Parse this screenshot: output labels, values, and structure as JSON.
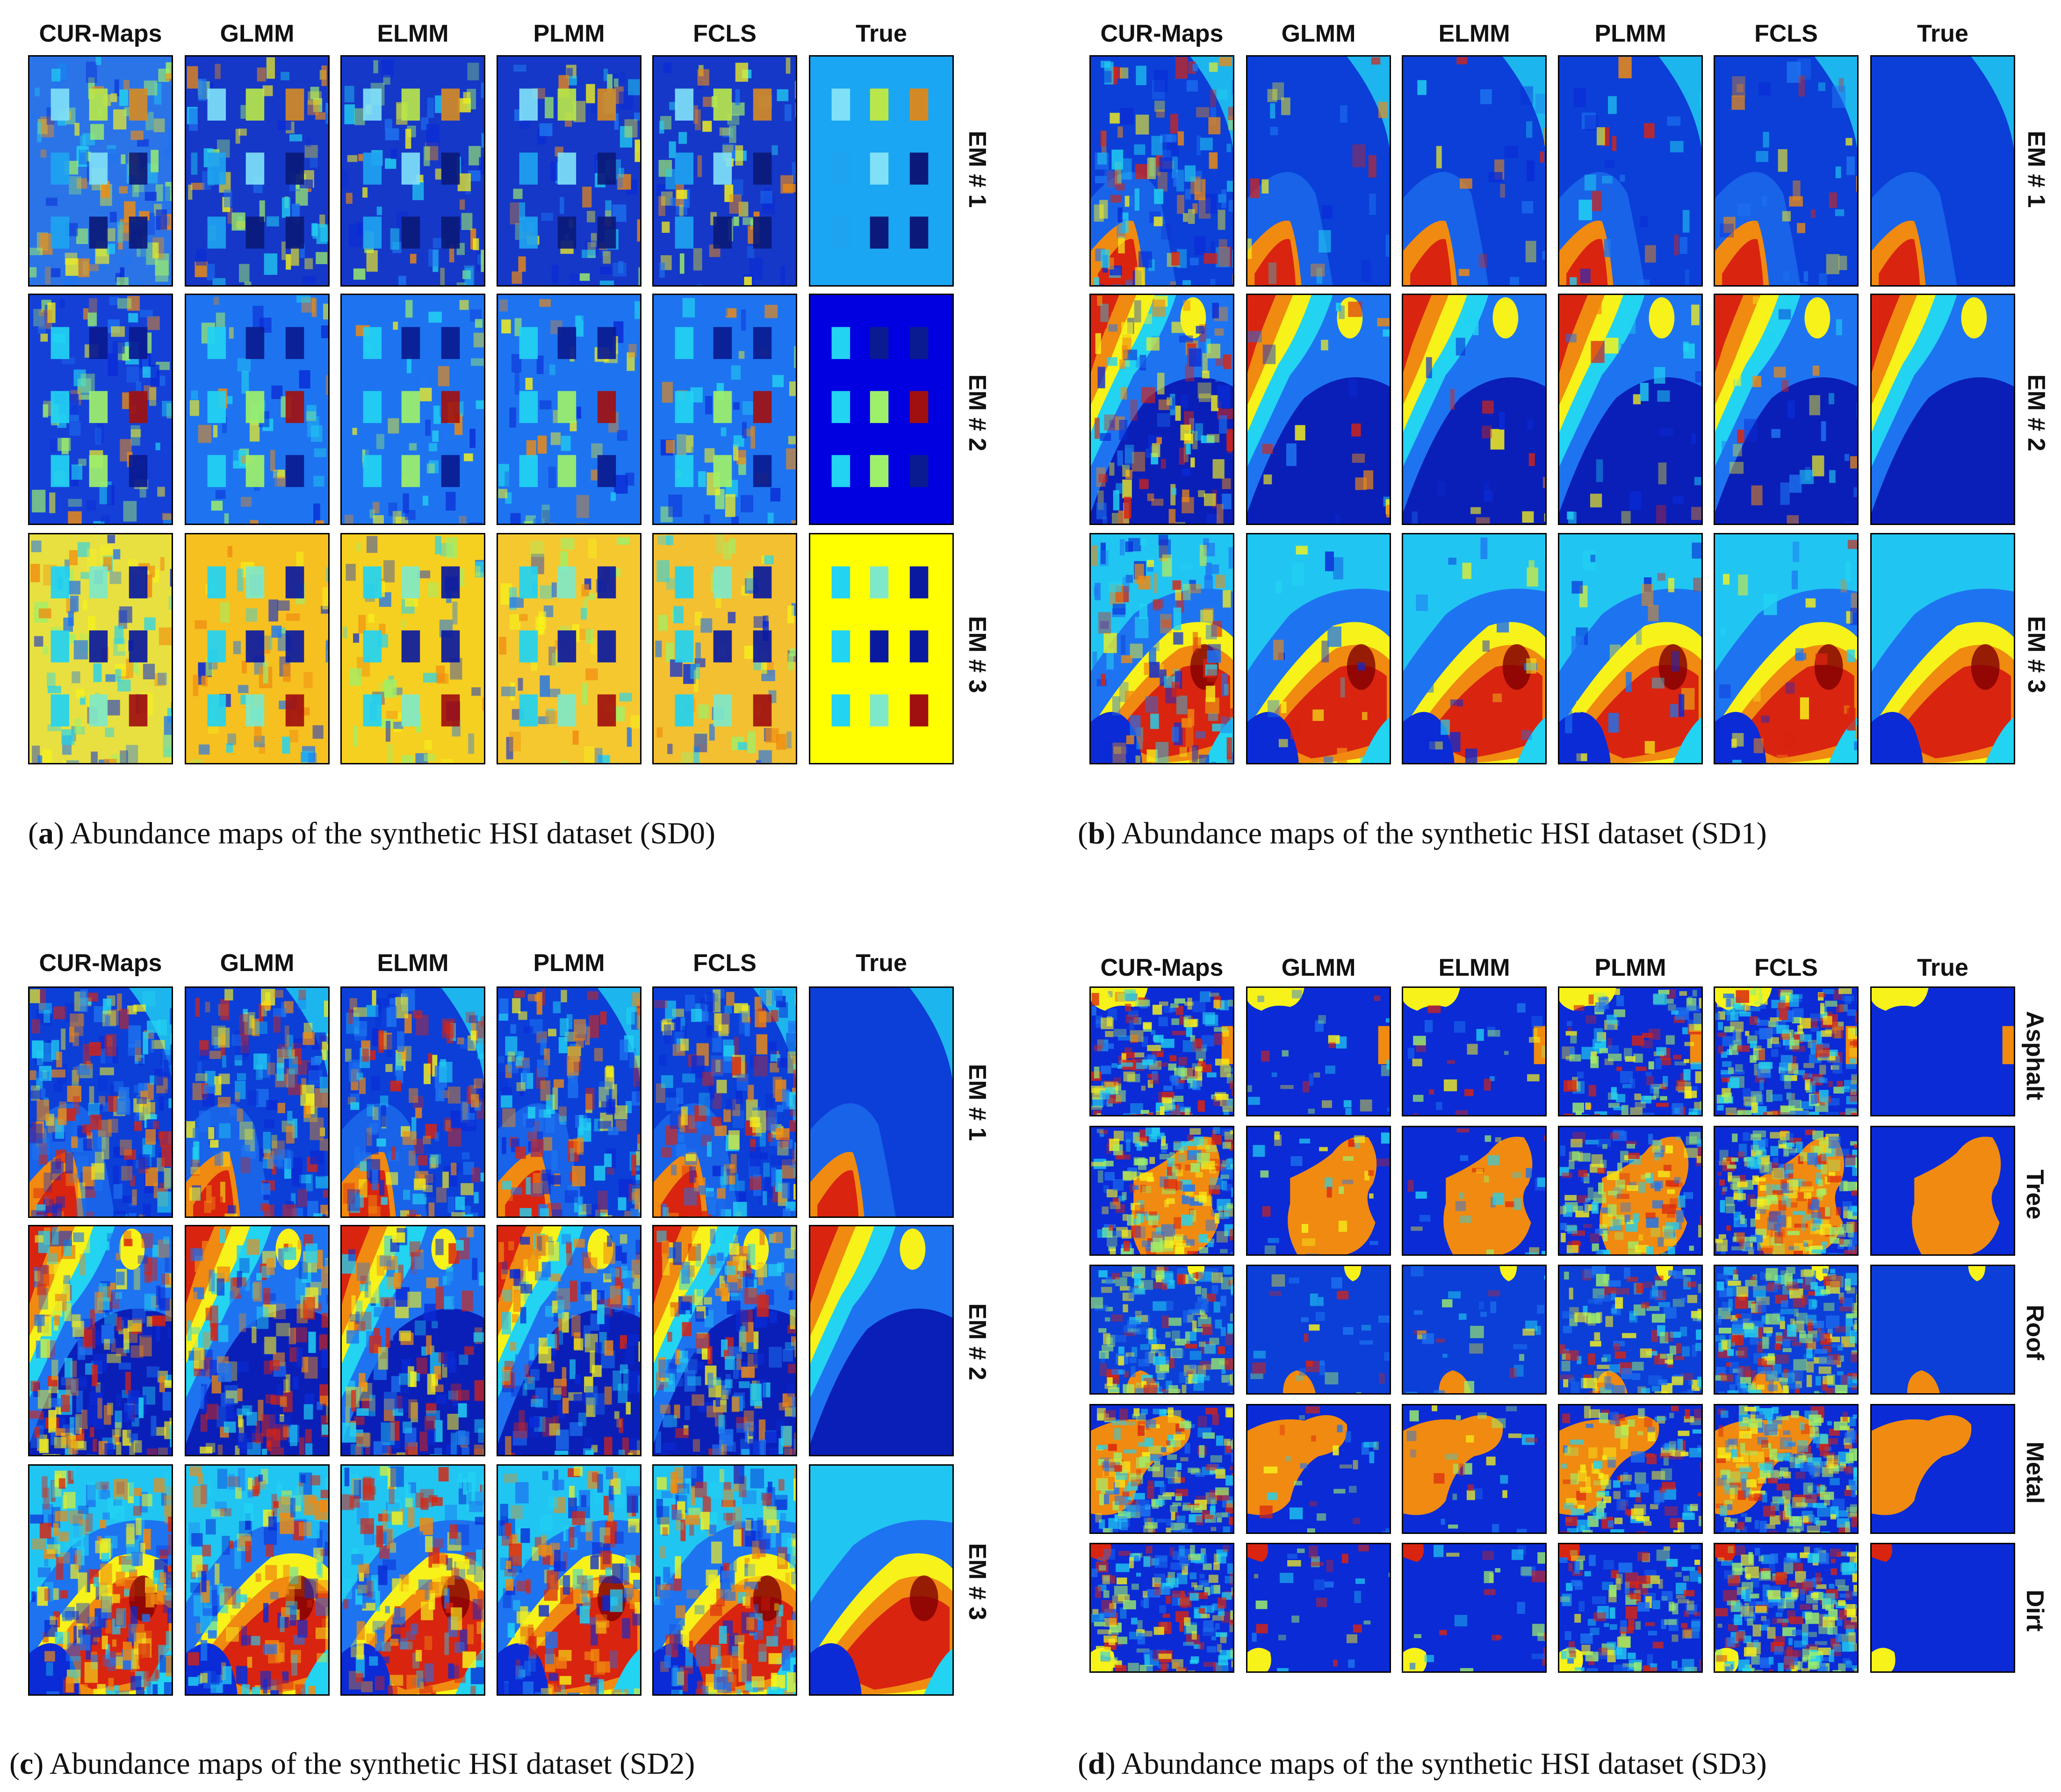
{
  "colors": {
    "deep": "#00008f",
    "blue": "#0a2bd6",
    "mid": "#1e74f0",
    "cyan": "#22d3f2",
    "green": "#9ef06a",
    "yellow": "#f7f21a",
    "orange": "#f08a10",
    "red": "#d92410",
    "dark_red": "#7f0000",
    "light_blue": "#1aa6f2"
  },
  "panels": [
    {
      "id": "a",
      "letter": "a",
      "caption": "Abundance maps of the synthetic HSI dataset (SD0)",
      "columns": [
        "CUR-Maps",
        "GLMM",
        "ELMM",
        "PLMM",
        "FCLS",
        "True"
      ],
      "rows": [
        "EM # 1",
        "EM # 2",
        "EM # 3"
      ],
      "maps": [
        {
          "row": 0,
          "style": "blocks",
          "bg": "#1a8ef0",
          "noise": 0.55,
          "blocks": [
            "#7fe0f7",
            "#b9e64a",
            "#d38a26",
            "#1ea3f0",
            "#7fe0f7",
            "#0b1a7a",
            "#1ea3f0",
            "#0b1a7a",
            "#0b1a7a"
          ],
          "method_bg": [
            "#2a74e8",
            "#1538c8",
            "#1538c8",
            "#1538c8",
            "#1538c8",
            "#1aa6f2"
          ]
        },
        {
          "row": 1,
          "style": "blocks",
          "bg": "#0a2bd6",
          "noise": 0.4,
          "blocks": [
            "#22d3f2",
            "#0a1a90",
            "#0a1a90",
            "#22d3f2",
            "#9ef06a",
            "#a01010",
            "#22d3f2",
            "#9ef06a",
            "#0a1a90"
          ],
          "method_bg": [
            "#1540d8",
            "#1e74f0",
            "#1e74f0",
            "#1e74f0",
            "#1e74f0",
            "#0000e0"
          ]
        },
        {
          "row": 2,
          "style": "blocks",
          "bg": "#f7f21a",
          "noise": 0.45,
          "blocks": [
            "#22d3f2",
            "#7fe8c8",
            "#0a1aa0",
            "#22d3f2",
            "#0a1aa0",
            "#0a1aa0",
            "#22d3f2",
            "#7fe8c8",
            "#a01010"
          ],
          "method_bg": [
            "#e8e040",
            "#f5c020",
            "#f5d020",
            "#f5c830",
            "#f2c030",
            "#ffff00"
          ]
        }
      ]
    },
    {
      "id": "b",
      "letter": "b",
      "caption": "Abundance maps of the synthetic HSI dataset (SD1)",
      "columns": [
        "CUR-Maps",
        "GLMM",
        "ELMM",
        "PLMM",
        "FCLS",
        "True"
      ],
      "rows": [
        "EM # 1",
        "EM # 2",
        "EM # 3"
      ]
    },
    {
      "id": "c",
      "letter": "c",
      "caption": "Abundance maps of the synthetic HSI dataset (SD2)",
      "columns": [
        "CUR-Maps",
        "GLMM",
        "ELMM",
        "PLMM",
        "FCLS",
        "True"
      ],
      "rows": [
        "EM # 1",
        "EM # 2",
        "EM # 3"
      ]
    },
    {
      "id": "d",
      "letter": "d",
      "caption": "Abundance maps of the synthetic HSI dataset (SD3)",
      "columns": [
        "CUR-Maps",
        "GLMM",
        "ELMM",
        "PLMM",
        "FCLS",
        "True"
      ],
      "rows": [
        "Asphalt",
        "Tree",
        "Roof",
        "Metal",
        "Dirt"
      ]
    }
  ]
}
